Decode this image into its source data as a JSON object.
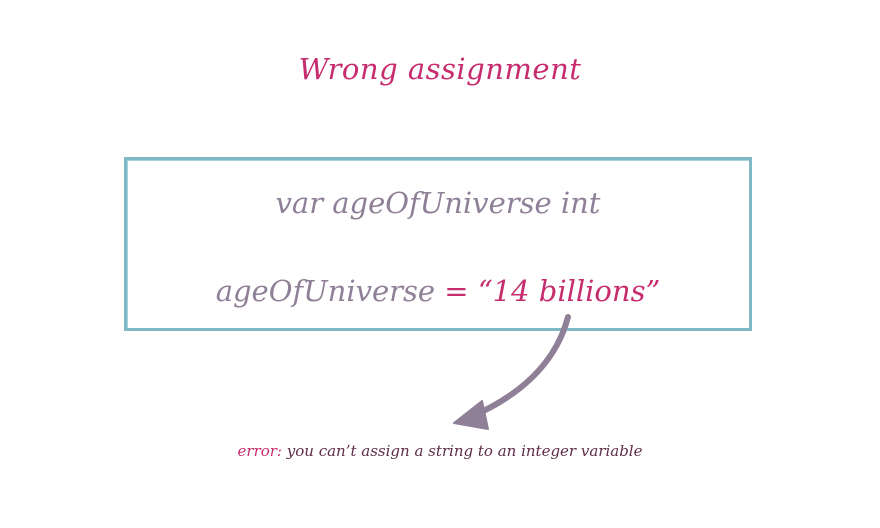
{
  "title": "Wrong assignment",
  "code": {
    "line1": "var ageOfUniverse int",
    "line2_identifier": "ageOfUniverse",
    "line2_operator": "=",
    "line2_value": "“14 billions”"
  },
  "error": {
    "label": "error:",
    "message": "you can’t assign a string to an integer variable"
  },
  "colors": {
    "accent": "#c62c6e",
    "code_text": "#8f8098",
    "box_border": "#7fb9c6",
    "arrow": "#8f8098",
    "error_message": "#5e2d47"
  },
  "icons": {
    "arrow": "curved-arrow-icon"
  }
}
